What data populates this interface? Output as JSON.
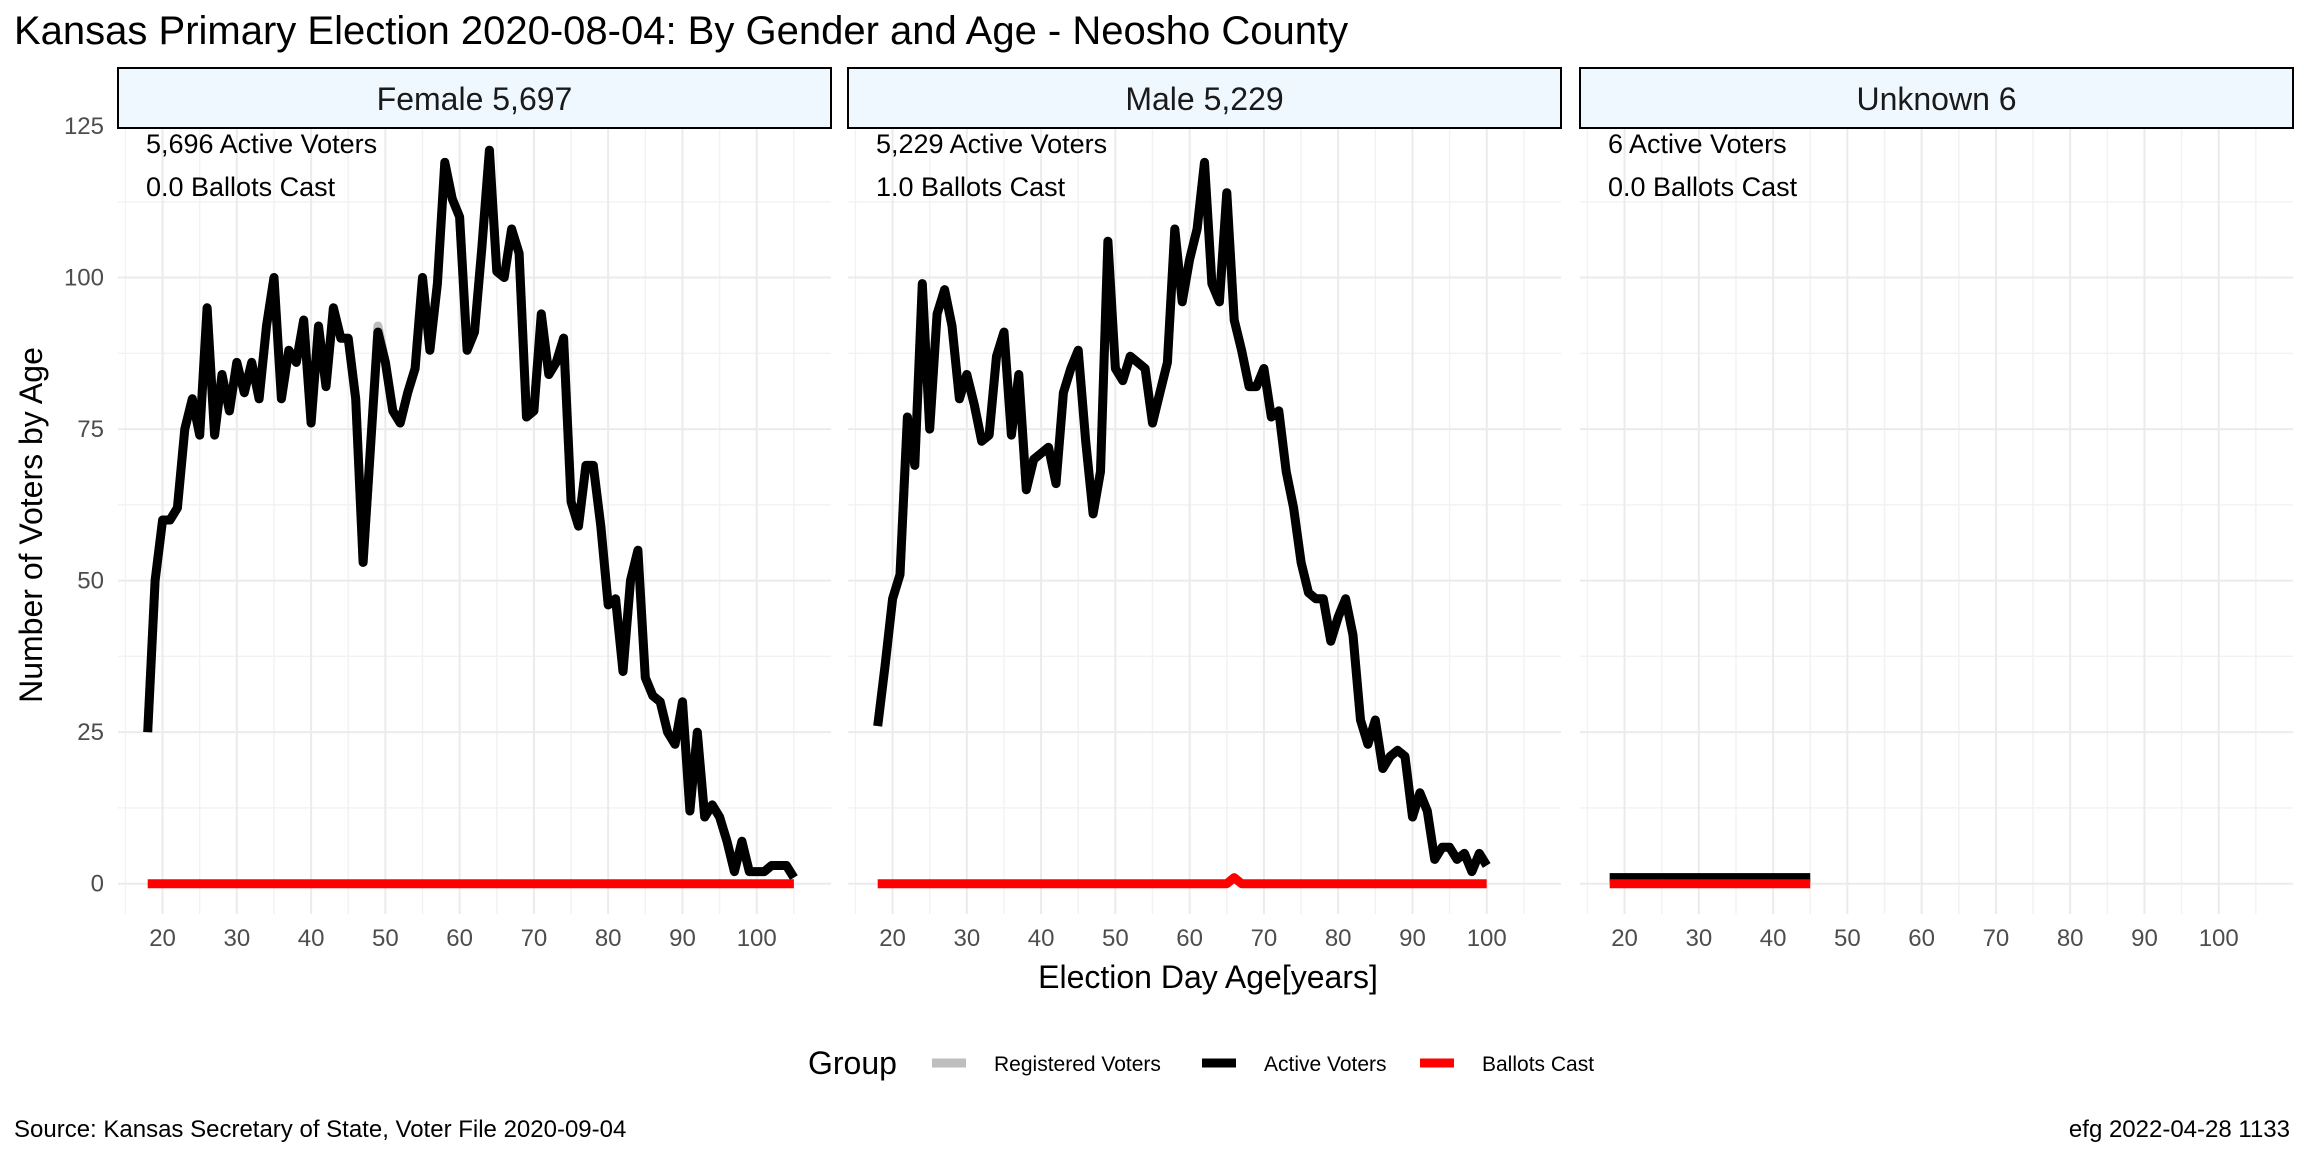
{
  "chart_data": {
    "type": "line",
    "title": "Kansas Primary Election 2020-08-04:  By Gender and Age - Neosho County",
    "xlabel": "Election Day Age[years]",
    "ylabel": "Number of Voters by Age",
    "xlim": [
      14,
      110
    ],
    "ylim": [
      -5,
      125
    ],
    "x_ticks": [
      20,
      30,
      40,
      50,
      60,
      70,
      80,
      90,
      100
    ],
    "y_ticks": [
      0,
      25,
      50,
      75,
      100,
      125
    ],
    "grid": true,
    "legend": {
      "title": "Group",
      "position": "bottom",
      "entries": [
        {
          "label": "Registered Voters",
          "color": "#bebebe"
        },
        {
          "label": "Active Voters",
          "color": "#000000"
        },
        {
          "label": "Ballots Cast",
          "color": "#ff0000"
        }
      ]
    },
    "caption_left": "Source:  Kansas Secretary of State, Voter File  2020-09-04",
    "caption_right": "efg 2022-04-28 1133",
    "panels": [
      {
        "strip": "Female 5,697",
        "annotations": [
          "5,696 Active Voters",
          "0.0 Ballots Cast"
        ],
        "series": [
          {
            "name": "Registered Voters",
            "x": [
              18,
              19,
              20,
              21,
              22,
              23,
              24,
              25,
              26,
              27,
              28,
              29,
              30,
              31,
              32,
              33,
              34,
              35,
              36,
              37,
              38,
              39,
              40,
              41,
              42,
              43,
              44,
              45,
              46,
              47,
              48,
              49,
              50,
              51,
              52,
              53,
              54,
              55,
              56,
              57,
              58,
              59,
              60,
              61,
              62,
              63,
              64,
              65,
              66,
              67,
              68,
              69,
              70,
              71,
              72,
              73,
              74,
              75,
              76,
              77,
              78,
              79,
              80,
              81,
              82,
              83,
              84,
              85,
              86,
              87,
              88,
              89,
              90,
              91,
              92,
              93,
              94,
              95,
              96,
              97,
              98,
              99,
              100,
              101,
              102,
              103,
              104,
              105
            ],
            "y": [
              25,
              50,
              60,
              60,
              62,
              75,
              80,
              74,
              95,
              74,
              84,
              78,
              86,
              81,
              86,
              80,
              92,
              100,
              80,
              88,
              86,
              93,
              76,
              92,
              82,
              95,
              90,
              90,
              80,
              53,
              72,
              92,
              86,
              78,
              76,
              81,
              85,
              100,
              88,
              99,
              119,
              113,
              110,
              88,
              91,
              105,
              121,
              101,
              100,
              108,
              104,
              77,
              78,
              94,
              84,
              86,
              90,
              63,
              59,
              69,
              69,
              59,
              46,
              47,
              35,
              50,
              55,
              34,
              31,
              30,
              25,
              23,
              30,
              12,
              25,
              11,
              13,
              11,
              7,
              2,
              7,
              2,
              2,
              2,
              3,
              3,
              3,
              1
            ]
          },
          {
            "name": "Active Voters",
            "x": [
              18,
              19,
              20,
              21,
              22,
              23,
              24,
              25,
              26,
              27,
              28,
              29,
              30,
              31,
              32,
              33,
              34,
              35,
              36,
              37,
              38,
              39,
              40,
              41,
              42,
              43,
              44,
              45,
              46,
              47,
              48,
              49,
              50,
              51,
              52,
              53,
              54,
              55,
              56,
              57,
              58,
              59,
              60,
              61,
              62,
              63,
              64,
              65,
              66,
              67,
              68,
              69,
              70,
              71,
              72,
              73,
              74,
              75,
              76,
              77,
              78,
              79,
              80,
              81,
              82,
              83,
              84,
              85,
              86,
              87,
              88,
              89,
              90,
              91,
              92,
              93,
              94,
              95,
              96,
              97,
              98,
              99,
              100,
              101,
              102,
              103,
              104,
              105
            ],
            "y": [
              25,
              50,
              60,
              60,
              62,
              75,
              80,
              74,
              95,
              74,
              84,
              78,
              86,
              81,
              86,
              80,
              92,
              100,
              80,
              88,
              86,
              93,
              76,
              92,
              82,
              95,
              90,
              90,
              80,
              53,
              72,
              91,
              86,
              78,
              76,
              81,
              85,
              100,
              88,
              99,
              119,
              113,
              110,
              88,
              91,
              105,
              121,
              101,
              100,
              108,
              104,
              77,
              78,
              94,
              84,
              86,
              90,
              63,
              59,
              69,
              69,
              59,
              46,
              47,
              35,
              50,
              55,
              34,
              31,
              30,
              25,
              23,
              30,
              12,
              25,
              11,
              13,
              11,
              7,
              2,
              7,
              2,
              2,
              2,
              3,
              3,
              3,
              1
            ]
          },
          {
            "name": "Ballots Cast",
            "x": [
              18,
              105
            ],
            "y": [
              0,
              0
            ]
          }
        ]
      },
      {
        "strip": "Male 5,229",
        "annotations": [
          "5,229 Active Voters",
          "1.0 Ballots Cast"
        ],
        "series": [
          {
            "name": "Registered Voters",
            "x": [
              18,
              19,
              20,
              21,
              22,
              23,
              24,
              25,
              26,
              27,
              28,
              29,
              30,
              31,
              32,
              33,
              34,
              35,
              36,
              37,
              38,
              39,
              40,
              41,
              42,
              43,
              44,
              45,
              46,
              47,
              48,
              49,
              50,
              51,
              52,
              53,
              54,
              55,
              56,
              57,
              58,
              59,
              60,
              61,
              62,
              63,
              64,
              65,
              66,
              67,
              68,
              69,
              70,
              71,
              72,
              73,
              74,
              75,
              76,
              77,
              78,
              79,
              80,
              81,
              82,
              83,
              84,
              85,
              86,
              87,
              88,
              89,
              90,
              91,
              92,
              93,
              94,
              95,
              96,
              97,
              98,
              99,
              100
            ],
            "y": [
              26,
              36,
              47,
              51,
              77,
              69,
              99,
              75,
              94,
              98,
              92,
              80,
              84,
              79,
              73,
              74,
              87,
              91,
              74,
              84,
              65,
              70,
              71,
              72,
              66,
              81,
              85,
              88,
              73,
              61,
              68,
              106,
              85,
              83,
              87,
              86,
              85,
              76,
              81,
              86,
              108,
              96,
              103,
              108,
              119,
              99,
              96,
              114,
              93,
              88,
              82,
              82,
              85,
              77,
              78,
              68,
              62,
              53,
              48,
              47,
              47,
              40,
              44,
              47,
              41,
              27,
              23,
              27,
              19,
              21,
              22,
              21,
              11,
              15,
              12,
              4,
              6,
              6,
              4,
              5,
              2,
              5,
              3
            ]
          },
          {
            "name": "Active Voters",
            "x": [
              18,
              19,
              20,
              21,
              22,
              23,
              24,
              25,
              26,
              27,
              28,
              29,
              30,
              31,
              32,
              33,
              34,
              35,
              36,
              37,
              38,
              39,
              40,
              41,
              42,
              43,
              44,
              45,
              46,
              47,
              48,
              49,
              50,
              51,
              52,
              53,
              54,
              55,
              56,
              57,
              58,
              59,
              60,
              61,
              62,
              63,
              64,
              65,
              66,
              67,
              68,
              69,
              70,
              71,
              72,
              73,
              74,
              75,
              76,
              77,
              78,
              79,
              80,
              81,
              82,
              83,
              84,
              85,
              86,
              87,
              88,
              89,
              90,
              91,
              92,
              93,
              94,
              95,
              96,
              97,
              98,
              99,
              100
            ],
            "y": [
              26,
              36,
              47,
              51,
              77,
              69,
              99,
              75,
              94,
              98,
              92,
              80,
              84,
              79,
              73,
              74,
              87,
              91,
              74,
              84,
              65,
              70,
              71,
              72,
              66,
              81,
              85,
              88,
              73,
              61,
              68,
              106,
              85,
              83,
              87,
              86,
              85,
              76,
              81,
              86,
              108,
              96,
              103,
              108,
              119,
              99,
              96,
              114,
              93,
              88,
              82,
              82,
              85,
              77,
              78,
              68,
              62,
              53,
              48,
              47,
              47,
              40,
              44,
              47,
              41,
              27,
              23,
              27,
              19,
              21,
              22,
              21,
              11,
              15,
              12,
              4,
              6,
              6,
              4,
              5,
              2,
              5,
              3
            ]
          },
          {
            "name": "Ballots Cast",
            "x": [
              18,
              65,
              66,
              67,
              100
            ],
            "y": [
              0,
              0,
              1,
              0,
              0
            ]
          }
        ]
      },
      {
        "strip": "Unknown 6",
        "annotations": [
          "6 Active Voters",
          "0.0 Ballots Cast"
        ],
        "series": [
          {
            "name": "Registered Voters",
            "x": [
              18,
              45
            ],
            "y": [
              1,
              1
            ]
          },
          {
            "name": "Active Voters",
            "x": [
              18,
              45
            ],
            "y": [
              1,
              1
            ]
          },
          {
            "name": "Ballots Cast",
            "x": [
              18,
              45
            ],
            "y": [
              0,
              0
            ]
          }
        ]
      }
    ]
  }
}
